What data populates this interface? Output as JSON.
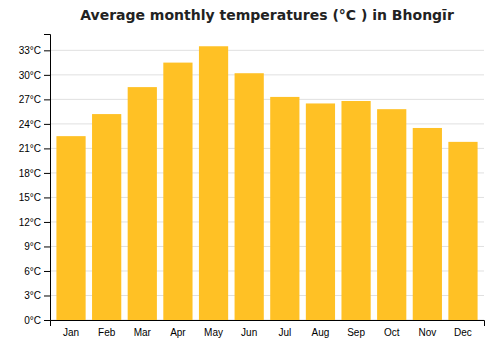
{
  "chart_data": {
    "type": "bar",
    "title": "Average monthly temperatures (°C ) in Bhongīr",
    "categories": [
      "Jan",
      "Feb",
      "Mar",
      "Apr",
      "May",
      "Jun",
      "Jul",
      "Aug",
      "Sep",
      "Oct",
      "Nov",
      "Dec"
    ],
    "values": [
      22.5,
      25.2,
      28.5,
      31.5,
      33.5,
      30.2,
      27.3,
      26.5,
      26.8,
      25.8,
      23.5,
      21.8
    ],
    "color": "#FFC125",
    "ylim": [
      0,
      35
    ],
    "yticks": [
      {
        "value": 0,
        "label": "0°C"
      },
      {
        "value": 3,
        "label": "3°C"
      },
      {
        "value": 6,
        "label": "6°C"
      },
      {
        "value": 9,
        "label": "9°C"
      },
      {
        "value": 12,
        "label": "12°C"
      },
      {
        "value": 15,
        "label": "15°C"
      },
      {
        "value": 18,
        "label": "18°C"
      },
      {
        "value": 21,
        "label": "21°C"
      },
      {
        "value": 24,
        "label": "24°C"
      },
      {
        "value": 27,
        "label": "27°C"
      },
      {
        "value": 30,
        "label": "30°C"
      },
      {
        "value": 33,
        "label": "33°C"
      }
    ],
    "grid": true
  }
}
